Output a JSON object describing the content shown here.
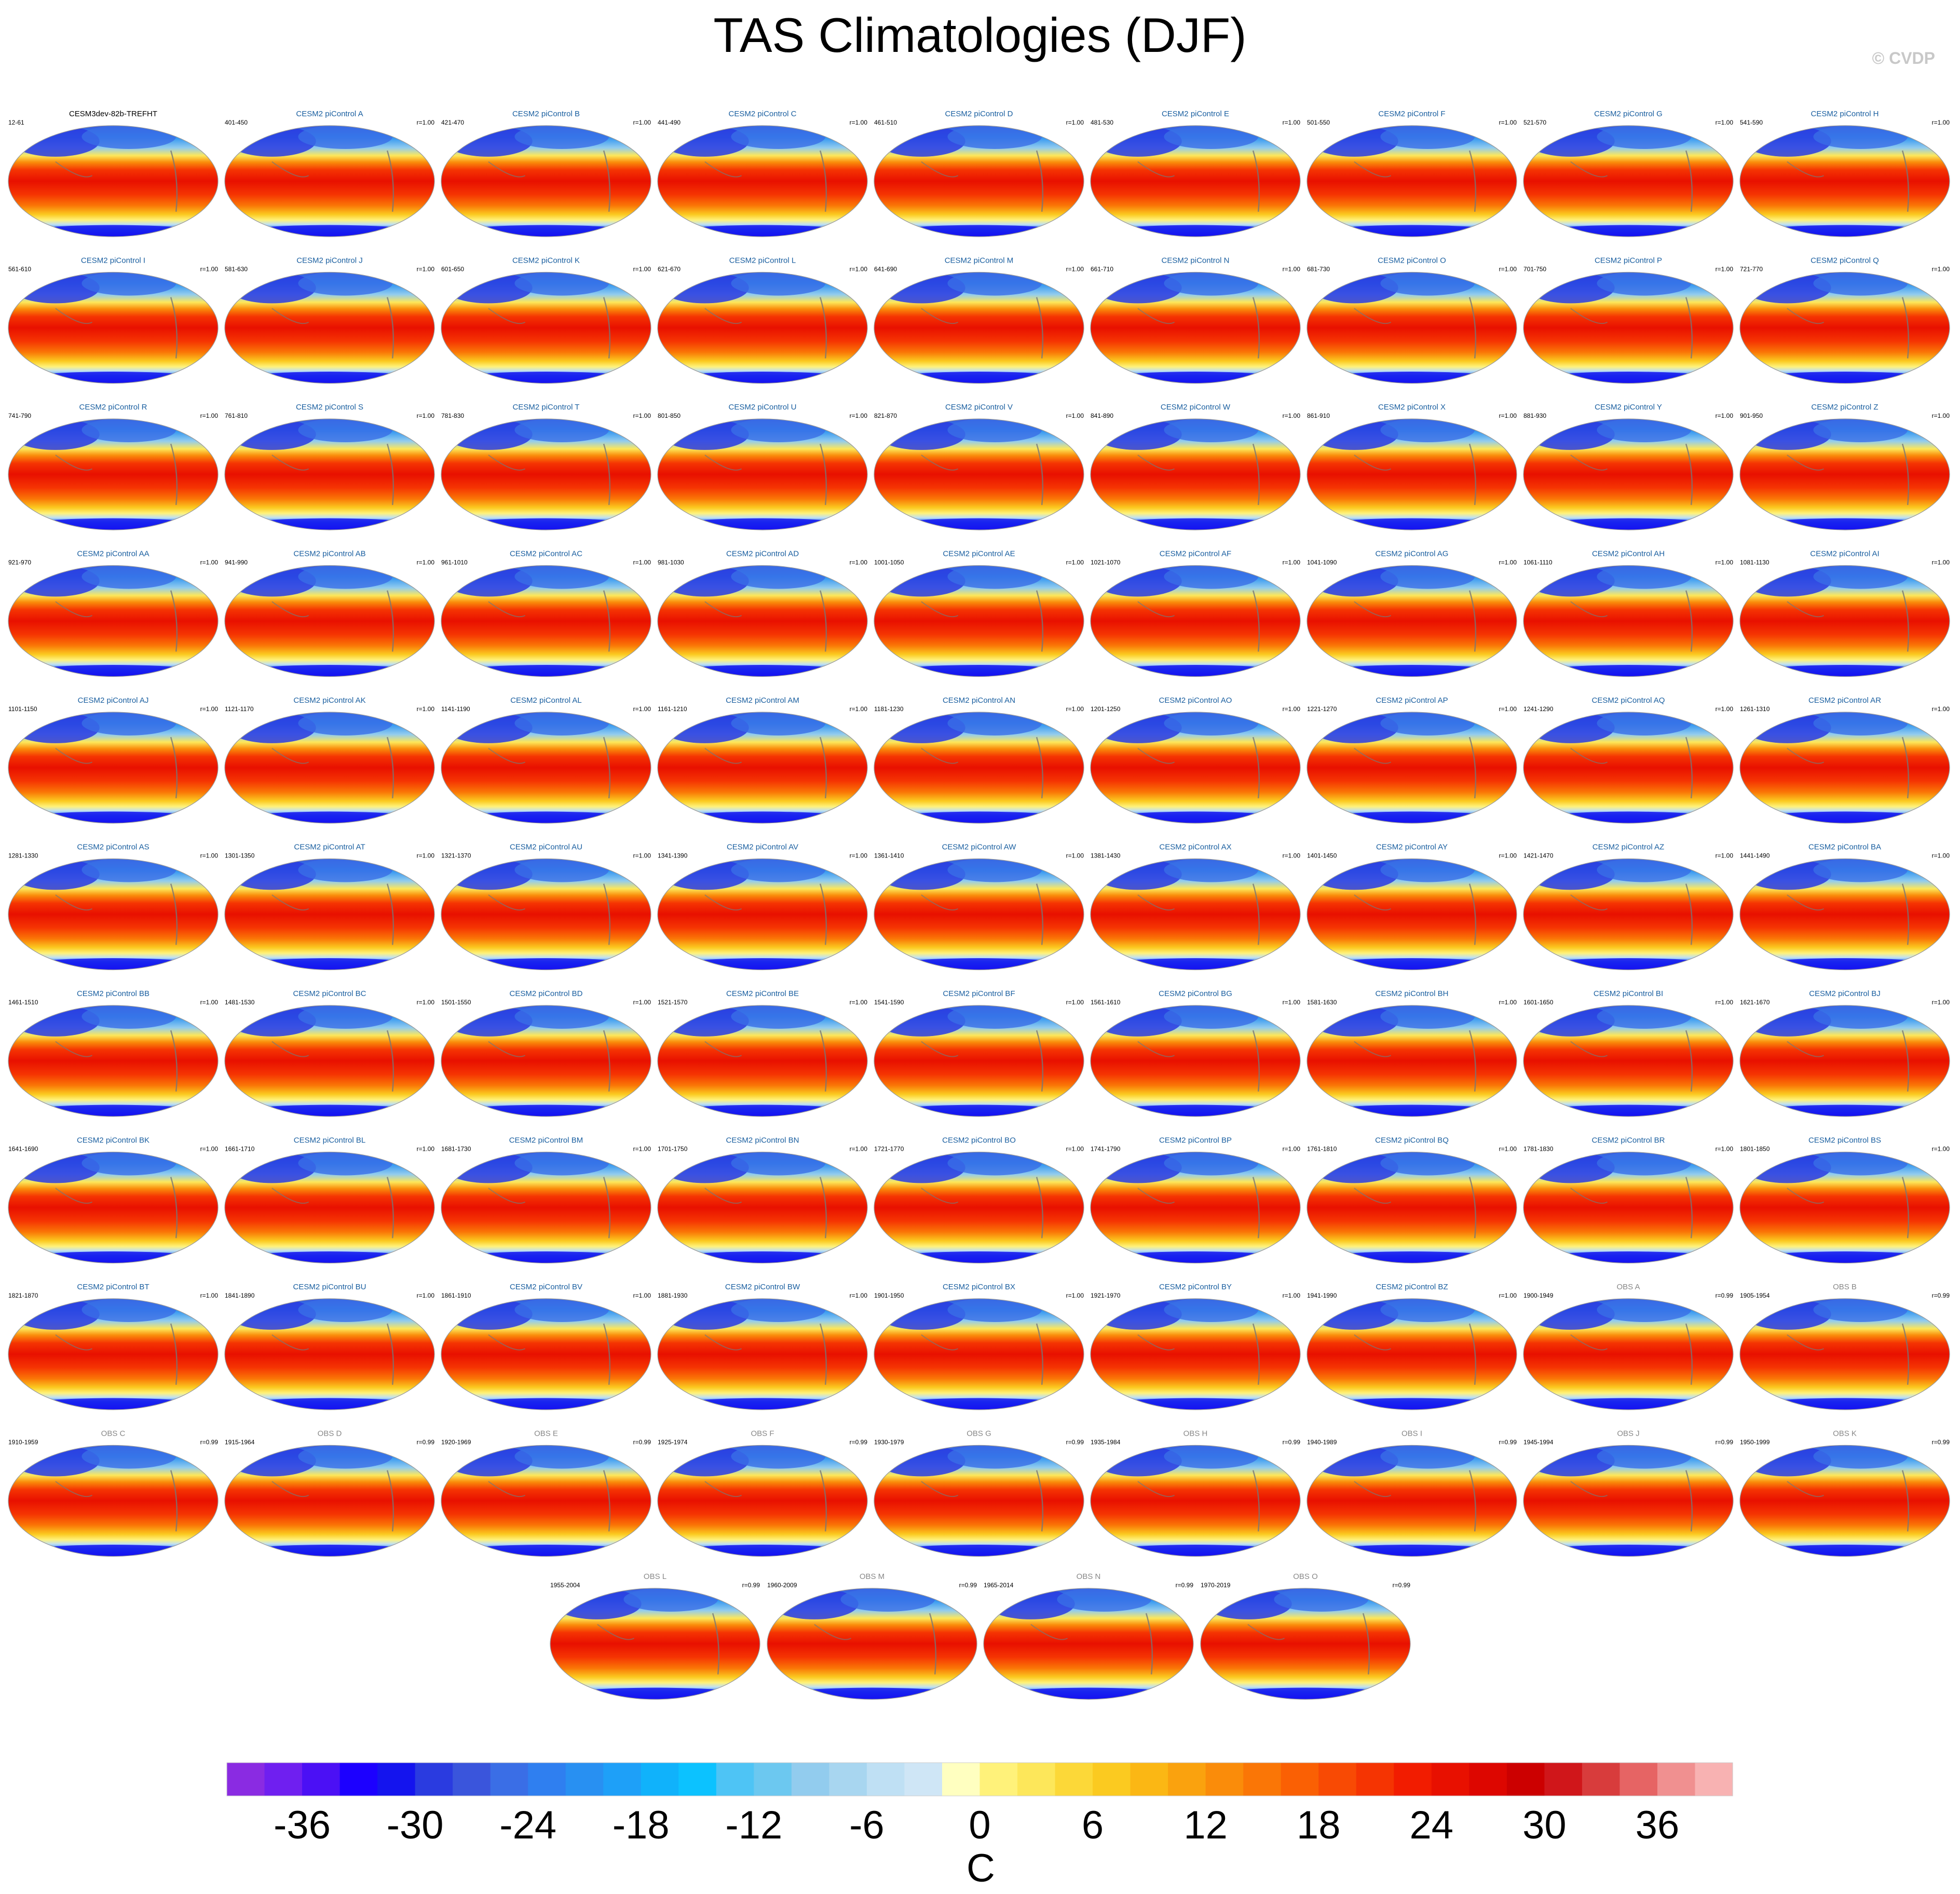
{
  "title": "TAS Climatologies (DJF)",
  "watermark": "© CVDP",
  "chart_data": {
    "type": "heatmap",
    "title": "TAS Climatologies (DJF)",
    "colorbar": {
      "unit": "C",
      "ticks": [
        -36,
        -30,
        -24,
        -18,
        -12,
        -6,
        0,
        6,
        12,
        18,
        24,
        30,
        36
      ],
      "tick_labels": [
        "-36",
        "-30",
        "-24",
        "-18",
        "-12",
        "-6",
        "0",
        "6",
        "12",
        "18",
        "24",
        "30",
        "36"
      ],
      "levels_min": -40,
      "levels_step": 2,
      "colors": [
        "#8a2be2",
        "#6f1ff0",
        "#4b10f5",
        "#1c00ff",
        "#1414ee",
        "#2a3be0",
        "#3a55dc",
        "#3a6ee6",
        "#2f7ff0",
        "#2890f2",
        "#1ea0f8",
        "#10b2fb",
        "#0cc2ff",
        "#4ec4f5",
        "#6cc8f0",
        "#92ccee",
        "#a8d6f0",
        "#bfe0f4",
        "#cfe6f6",
        "#ffffc0",
        "#fff27a",
        "#fde75a",
        "#fcd838",
        "#fbca20",
        "#fbb714",
        "#faa20e",
        "#fa8c0a",
        "#fa7606",
        "#fa6004",
        "#f84a04",
        "#f53402",
        "#f21c00",
        "#e81000",
        "#dd0600",
        "#cc0000",
        "#d0161a",
        "#d83c3c",
        "#e66464",
        "#f09090",
        "#f8b2b2"
      ]
    },
    "panels": [
      {
        "title": "CESM3dev-82b-TREFHT",
        "left": "12-61",
        "right": ""
      },
      {
        "title": "CESM2 piControl A",
        "left": "401-450",
        "right": "r=1.00"
      },
      {
        "title": "CESM2 piControl B",
        "left": "421-470",
        "right": "r=1.00"
      },
      {
        "title": "CESM2 piControl C",
        "left": "441-490",
        "right": "r=1.00"
      },
      {
        "title": "CESM2 piControl D",
        "left": "461-510",
        "right": "r=1.00"
      },
      {
        "title": "CESM2 piControl E",
        "left": "481-530",
        "right": "r=1.00"
      },
      {
        "title": "CESM2 piControl F",
        "left": "501-550",
        "right": "r=1.00"
      },
      {
        "title": "CESM2 piControl G",
        "left": "521-570",
        "right": "r=1.00"
      },
      {
        "title": "CESM2 piControl H",
        "left": "541-590",
        "right": "r=1.00"
      },
      {
        "title": "CESM2 piControl I",
        "left": "561-610",
        "right": "r=1.00"
      },
      {
        "title": "CESM2 piControl J",
        "left": "581-630",
        "right": "r=1.00"
      },
      {
        "title": "CESM2 piControl K",
        "left": "601-650",
        "right": "r=1.00"
      },
      {
        "title": "CESM2 piControl L",
        "left": "621-670",
        "right": "r=1.00"
      },
      {
        "title": "CESM2 piControl M",
        "left": "641-690",
        "right": "r=1.00"
      },
      {
        "title": "CESM2 piControl N",
        "left": "661-710",
        "right": "r=1.00"
      },
      {
        "title": "CESM2 piControl O",
        "left": "681-730",
        "right": "r=1.00"
      },
      {
        "title": "CESM2 piControl P",
        "left": "701-750",
        "right": "r=1.00"
      },
      {
        "title": "CESM2 piControl Q",
        "left": "721-770",
        "right": "r=1.00"
      },
      {
        "title": "CESM2 piControl R",
        "left": "741-790",
        "right": "r=1.00"
      },
      {
        "title": "CESM2 piControl S",
        "left": "761-810",
        "right": "r=1.00"
      },
      {
        "title": "CESM2 piControl T",
        "left": "781-830",
        "right": "r=1.00"
      },
      {
        "title": "CESM2 piControl U",
        "left": "801-850",
        "right": "r=1.00"
      },
      {
        "title": "CESM2 piControl V",
        "left": "821-870",
        "right": "r=1.00"
      },
      {
        "title": "CESM2 piControl W",
        "left": "841-890",
        "right": "r=1.00"
      },
      {
        "title": "CESM2 piControl X",
        "left": "861-910",
        "right": "r=1.00"
      },
      {
        "title": "CESM2 piControl Y",
        "left": "881-930",
        "right": "r=1.00"
      },
      {
        "title": "CESM2 piControl Z",
        "left": "901-950",
        "right": "r=1.00"
      },
      {
        "title": "CESM2 piControl AA",
        "left": "921-970",
        "right": "r=1.00"
      },
      {
        "title": "CESM2 piControl AB",
        "left": "941-990",
        "right": "r=1.00"
      },
      {
        "title": "CESM2 piControl AC",
        "left": "961-1010",
        "right": "r=1.00"
      },
      {
        "title": "CESM2 piControl AD",
        "left": "981-1030",
        "right": "r=1.00"
      },
      {
        "title": "CESM2 piControl AE",
        "left": "1001-1050",
        "right": "r=1.00"
      },
      {
        "title": "CESM2 piControl AF",
        "left": "1021-1070",
        "right": "r=1.00"
      },
      {
        "title": "CESM2 piControl AG",
        "left": "1041-1090",
        "right": "r=1.00"
      },
      {
        "title": "CESM2 piControl AH",
        "left": "1061-1110",
        "right": "r=1.00"
      },
      {
        "title": "CESM2 piControl AI",
        "left": "1081-1130",
        "right": "r=1.00"
      },
      {
        "title": "CESM2 piControl AJ",
        "left": "1101-1150",
        "right": "r=1.00"
      },
      {
        "title": "CESM2 piControl AK",
        "left": "1121-1170",
        "right": "r=1.00"
      },
      {
        "title": "CESM2 piControl AL",
        "left": "1141-1190",
        "right": "r=1.00"
      },
      {
        "title": "CESM2 piControl AM",
        "left": "1161-1210",
        "right": "r=1.00"
      },
      {
        "title": "CESM2 piControl AN",
        "left": "1181-1230",
        "right": "r=1.00"
      },
      {
        "title": "CESM2 piControl AO",
        "left": "1201-1250",
        "right": "r=1.00"
      },
      {
        "title": "CESM2 piControl AP",
        "left": "1221-1270",
        "right": "r=1.00"
      },
      {
        "title": "CESM2 piControl AQ",
        "left": "1241-1290",
        "right": "r=1.00"
      },
      {
        "title": "CESM2 piControl AR",
        "left": "1261-1310",
        "right": "r=1.00"
      },
      {
        "title": "CESM2 piControl AS",
        "left": "1281-1330",
        "right": "r=1.00"
      },
      {
        "title": "CESM2 piControl AT",
        "left": "1301-1350",
        "right": "r=1.00"
      },
      {
        "title": "CESM2 piControl AU",
        "left": "1321-1370",
        "right": "r=1.00"
      },
      {
        "title": "CESM2 piControl AV",
        "left": "1341-1390",
        "right": "r=1.00"
      },
      {
        "title": "CESM2 piControl AW",
        "left": "1361-1410",
        "right": "r=1.00"
      },
      {
        "title": "CESM2 piControl AX",
        "left": "1381-1430",
        "right": "r=1.00"
      },
      {
        "title": "CESM2 piControl AY",
        "left": "1401-1450",
        "right": "r=1.00"
      },
      {
        "title": "CESM2 piControl AZ",
        "left": "1421-1470",
        "right": "r=1.00"
      },
      {
        "title": "CESM2 piControl BA",
        "left": "1441-1490",
        "right": "r=1.00"
      },
      {
        "title": "CESM2 piControl BB",
        "left": "1461-1510",
        "right": "r=1.00"
      },
      {
        "title": "CESM2 piControl BC",
        "left": "1481-1530",
        "right": "r=1.00"
      },
      {
        "title": "CESM2 piControl BD",
        "left": "1501-1550",
        "right": "r=1.00"
      },
      {
        "title": "CESM2 piControl BE",
        "left": "1521-1570",
        "right": "r=1.00"
      },
      {
        "title": "CESM2 piControl BF",
        "left": "1541-1590",
        "right": "r=1.00"
      },
      {
        "title": "CESM2 piControl BG",
        "left": "1561-1610",
        "right": "r=1.00"
      },
      {
        "title": "CESM2 piControl BH",
        "left": "1581-1630",
        "right": "r=1.00"
      },
      {
        "title": "CESM2 piControl BI",
        "left": "1601-1650",
        "right": "r=1.00"
      },
      {
        "title": "CESM2 piControl BJ",
        "left": "1621-1670",
        "right": "r=1.00"
      },
      {
        "title": "CESM2 piControl BK",
        "left": "1641-1690",
        "right": "r=1.00"
      },
      {
        "title": "CESM2 piControl BL",
        "left": "1661-1710",
        "right": "r=1.00"
      },
      {
        "title": "CESM2 piControl BM",
        "left": "1681-1730",
        "right": "r=1.00"
      },
      {
        "title": "CESM2 piControl BN",
        "left": "1701-1750",
        "right": "r=1.00"
      },
      {
        "title": "CESM2 piControl BO",
        "left": "1721-1770",
        "right": "r=1.00"
      },
      {
        "title": "CESM2 piControl BP",
        "left": "1741-1790",
        "right": "r=1.00"
      },
      {
        "title": "CESM2 piControl BQ",
        "left": "1761-1810",
        "right": "r=1.00"
      },
      {
        "title": "CESM2 piControl BR",
        "left": "1781-1830",
        "right": "r=1.00"
      },
      {
        "title": "CESM2 piControl BS",
        "left": "1801-1850",
        "right": "r=1.00"
      },
      {
        "title": "CESM2 piControl BT",
        "left": "1821-1870",
        "right": "r=1.00"
      },
      {
        "title": "CESM2 piControl BU",
        "left": "1841-1890",
        "right": "r=1.00"
      },
      {
        "title": "CESM2 piControl BV",
        "left": "1861-1910",
        "right": "r=1.00"
      },
      {
        "title": "CESM2 piControl BW",
        "left": "1881-1930",
        "right": "r=1.00"
      },
      {
        "title": "CESM2 piControl BX",
        "left": "1901-1950",
        "right": "r=1.00"
      },
      {
        "title": "CESM2 piControl BY",
        "left": "1921-1970",
        "right": "r=1.00"
      },
      {
        "title": "CESM2 piControl BZ",
        "left": "1941-1990",
        "right": "r=1.00"
      },
      {
        "title": "OBS A",
        "left": "1900-1949",
        "right": "r=0.99"
      },
      {
        "title": "OBS B",
        "left": "1905-1954",
        "right": "r=0.99"
      },
      {
        "title": "OBS C",
        "left": "1910-1959",
        "right": "r=0.99"
      },
      {
        "title": "OBS D",
        "left": "1915-1964",
        "right": "r=0.99"
      },
      {
        "title": "OBS E",
        "left": "1920-1969",
        "right": "r=0.99"
      },
      {
        "title": "OBS F",
        "left": "1925-1974",
        "right": "r=0.99"
      },
      {
        "title": "OBS G",
        "left": "1930-1979",
        "right": "r=0.99"
      },
      {
        "title": "OBS H",
        "left": "1935-1984",
        "right": "r=0.99"
      },
      {
        "title": "OBS I",
        "left": "1940-1989",
        "right": "r=0.99"
      },
      {
        "title": "OBS J",
        "left": "1945-1994",
        "right": "r=0.99"
      },
      {
        "title": "OBS K",
        "left": "1950-1999",
        "right": "r=0.99"
      },
      {
        "title": "OBS L",
        "left": "1955-2004",
        "right": "r=0.99"
      },
      {
        "title": "OBS M",
        "left": "1960-2009",
        "right": "r=0.99"
      },
      {
        "title": "OBS N",
        "left": "1965-2014",
        "right": "r=0.99"
      },
      {
        "title": "OBS O",
        "left": "1970-2019",
        "right": "r=0.99"
      }
    ]
  }
}
